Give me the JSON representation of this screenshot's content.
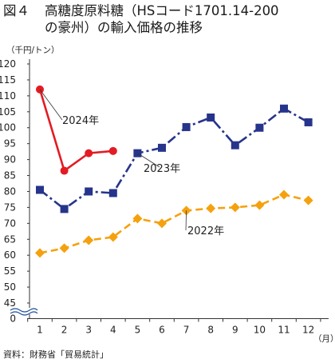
{
  "header": {
    "fig_label": "図４",
    "title_line1": "高糖度原料糖（HSコード1701.14-200",
    "title_line2": "の豪州）の輸入価格の推移"
  },
  "unit_label": "（千円/トン）",
  "x_unit_label": "（月）",
  "source": "資料：財務省「貿易統計」",
  "colors": {
    "s2024": "#e31b23",
    "s2023": "#26348b",
    "s2022": "#f5a10e"
  },
  "chart_data": {
    "type": "line",
    "x": [
      1,
      2,
      3,
      4,
      5,
      6,
      7,
      8,
      9,
      10,
      11,
      12
    ],
    "x_tick_labels": [
      "1",
      "2",
      "3",
      "4",
      "5",
      "6",
      "7",
      "8",
      "9",
      "10",
      "11",
      "12"
    ],
    "y_tick_labels": [
      "0",
      "45",
      "50",
      "55",
      "60",
      "65",
      "70",
      "75",
      "80",
      "85",
      "90",
      "95",
      "100",
      "105",
      "110",
      "115",
      "120"
    ],
    "ylim": [
      45,
      120
    ],
    "y_axis_break": true,
    "grid": false,
    "series": [
      {
        "name": "2024年",
        "color": "#e31b23",
        "marker": "circle",
        "style": "solid",
        "values": [
          112,
          86.5,
          92,
          92.7,
          null,
          null,
          null,
          null,
          null,
          null,
          null,
          null
        ]
      },
      {
        "name": "2023年",
        "color": "#26348b",
        "marker": "square",
        "style": "dashdot",
        "values": [
          80.5,
          74.5,
          80,
          79.5,
          92,
          93.7,
          100.2,
          103.2,
          94.5,
          100,
          106,
          101.7
        ]
      },
      {
        "name": "2022年",
        "color": "#f5a10e",
        "marker": "diamond",
        "style": "dashed",
        "values": [
          60.7,
          62.2,
          64.7,
          65.7,
          71.5,
          70,
          74,
          74.7,
          75,
          75.7,
          79,
          77.2
        ]
      }
    ]
  }
}
